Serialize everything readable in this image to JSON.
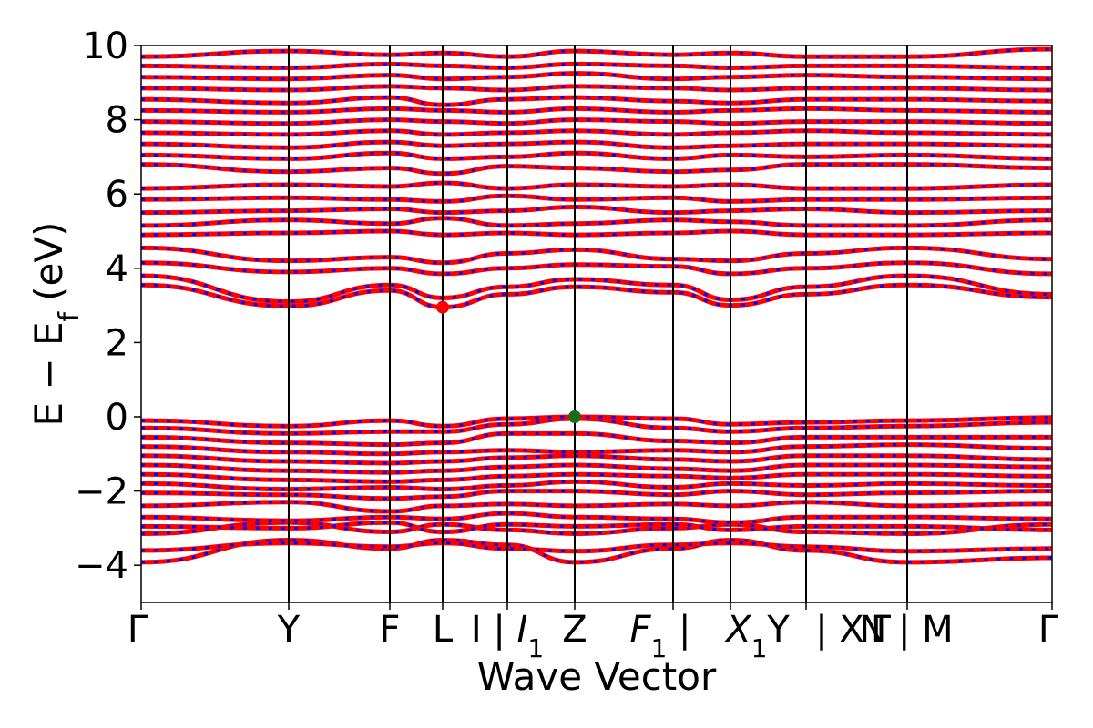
{
  "chart_data": {
    "type": "line",
    "xlabel": "Wave Vector",
    "ylabel": "E − E",
    "ylabel_sub": "f",
    "ylabel_unit": "(eV)",
    "ylim": [
      -5,
      10
    ],
    "yticks": [
      -4,
      -2,
      0,
      2,
      4,
      6,
      8,
      10
    ],
    "grid": false,
    "colors": {
      "band_main": "#ff0000",
      "band_dash": "#0000ff",
      "cbm_marker": "#ff0000",
      "vbm_marker": "#1a6b1a",
      "kpath_lines": "#000000"
    },
    "kpath": [
      {
        "label": "Γ",
        "x": 0.0
      },
      {
        "label": "Y",
        "x": 0.648
      },
      {
        "label": "F",
        "x": 1.092
      },
      {
        "label": "L",
        "x": 1.324
      },
      {
        "label": "I | ",
        "label_italic": "I",
        "label_sub": "1",
        "x": 1.608
      },
      {
        "label": "Z",
        "x": 1.904
      },
      {
        "label": "",
        "label_italic": "F",
        "label_sub": "1",
        "label_suffix": " |",
        "x": 2.336
      },
      {
        "label": "",
        "label_italic_part": "X",
        "label_sub": "1",
        "label_tail": "Y",
        "x": 2.588
      },
      {
        "label": "| X",
        "x": 2.588
      },
      {
        "label": "Γ",
        "x": 2.92
      },
      {
        "label": "N | M",
        "x": 3.364
      },
      {
        "label": "Γ",
        "x": 4.0
      }
    ],
    "tick_texts": [
      "Γ",
      "Y",
      "F",
      "L",
      "I | ",
      "I",
      "1",
      "Z",
      "F",
      "1",
      " |",
      "X",
      "1",
      "Y",
      "| X",
      "Γ",
      "N | M",
      "Γ"
    ],
    "vbm_point": {
      "x": 1.904,
      "y": 0.0
    },
    "cbm_point": {
      "x": 1.324,
      "y": 2.95
    },
    "series": [
      {
        "values": [
          -3.92,
          -3.32,
          -3.55,
          -3.32,
          -3.45,
          -3.92,
          -3.55,
          -3.32,
          -3.6,
          -3.92,
          -3.8,
          -3.92
        ]
      },
      {
        "values": [
          -3.6,
          -3.4,
          -3.5,
          -3.4,
          -3.55,
          -3.62,
          -3.45,
          -3.4,
          -3.5,
          -3.62,
          -3.55,
          -3.62
        ]
      },
      {
        "values": [
          -3.15,
          -2.85,
          -3.1,
          -2.9,
          -3.05,
          -3.15,
          -3.0,
          -2.9,
          -3.1,
          -3.15,
          -2.9,
          -3.15
        ]
      },
      {
        "values": [
          -2.95,
          -3.0,
          -2.85,
          -3.1,
          -2.9,
          -2.95,
          -2.9,
          -3.05,
          -2.95,
          -2.95,
          -3.05,
          -2.95
        ]
      },
      {
        "values": [
          -2.7,
          -2.8,
          -2.7,
          -2.75,
          -2.6,
          -2.7,
          -2.75,
          -2.85,
          -2.7,
          -2.7,
          -2.75,
          -2.7
        ]
      },
      {
        "values": [
          -2.4,
          -2.3,
          -2.55,
          -2.4,
          -2.35,
          -2.4,
          -2.35,
          -2.4,
          -2.3,
          -2.4,
          -2.35,
          -2.4
        ]
      },
      {
        "values": [
          -2.05,
          -2.1,
          -2.2,
          -2.15,
          -2.0,
          -2.0,
          -2.1,
          -2.0,
          -2.1,
          -2.05,
          -2.0,
          -2.05
        ]
      },
      {
        "values": [
          -1.8,
          -1.95,
          -1.9,
          -1.95,
          -1.85,
          -1.75,
          -1.9,
          -1.8,
          -1.85,
          -1.8,
          -1.85,
          -1.8
        ]
      },
      {
        "values": [
          -1.55,
          -1.7,
          -1.75,
          -1.7,
          -1.6,
          -1.55,
          -1.6,
          -1.65,
          -1.55,
          -1.55,
          -1.6,
          -1.55
        ]
      },
      {
        "values": [
          -1.3,
          -1.45,
          -1.5,
          -1.45,
          -1.35,
          -1.3,
          -1.4,
          -1.45,
          -1.3,
          -1.3,
          -1.35,
          -1.3
        ]
      },
      {
        "values": [
          -1.05,
          -1.2,
          -1.25,
          -1.2,
          -1.1,
          -1.05,
          -1.15,
          -1.2,
          -1.05,
          -1.05,
          -1.15,
          -1.05
        ]
      },
      {
        "values": [
          -0.8,
          -0.95,
          -1.0,
          -0.95,
          -0.9,
          -0.95,
          -0.9,
          -0.95,
          -0.8,
          -0.75,
          -0.85,
          -0.8
        ]
      },
      {
        "values": [
          -0.55,
          -0.7,
          -0.75,
          -0.7,
          -0.45,
          -0.45,
          -0.65,
          -0.7,
          -0.55,
          -0.55,
          -0.55,
          -0.55
        ]
      },
      {
        "values": [
          -0.3,
          -0.45,
          -0.4,
          -0.4,
          -0.2,
          -0.05,
          -0.3,
          -0.4,
          -0.3,
          -0.25,
          -0.15,
          -0.3
        ]
      },
      {
        "values": [
          -0.1,
          -0.25,
          -0.1,
          -0.25,
          -0.05,
          0.0,
          -0.05,
          -0.2,
          -0.15,
          -0.1,
          -0.02,
          -0.1
        ]
      },
      {
        "values": [
          3.55,
          2.98,
          3.4,
          2.95,
          3.3,
          3.5,
          3.35,
          3.0,
          3.3,
          3.55,
          3.22,
          3.55
        ]
      },
      {
        "values": [
          3.8,
          3.1,
          3.55,
          3.2,
          3.5,
          3.7,
          3.55,
          3.15,
          3.5,
          3.8,
          3.3,
          3.8
        ]
      },
      {
        "values": [
          4.15,
          3.9,
          4.0,
          3.85,
          4.0,
          4.1,
          4.05,
          3.85,
          4.0,
          4.15,
          3.85,
          4.15
        ]
      },
      {
        "values": [
          4.55,
          4.2,
          4.3,
          4.15,
          4.4,
          4.5,
          4.25,
          4.2,
          4.4,
          4.55,
          4.25,
          4.55
        ]
      },
      {
        "values": [
          4.9,
          4.95,
          5.0,
          4.9,
          4.95,
          4.9,
          4.95,
          5.0,
          4.9,
          4.9,
          4.95,
          4.9
        ]
      },
      {
        "values": [
          5.15,
          5.3,
          5.2,
          5.35,
          5.15,
          5.2,
          5.3,
          5.25,
          5.15,
          5.15,
          5.3,
          5.15
        ]
      },
      {
        "values": [
          5.5,
          5.55,
          5.6,
          5.5,
          5.55,
          5.65,
          5.5,
          5.55,
          5.6,
          5.5,
          5.55,
          5.5
        ]
      },
      {
        "values": [
          5.85,
          5.9,
          5.85,
          5.8,
          5.95,
          5.85,
          5.9,
          5.8,
          5.85,
          5.85,
          5.9,
          5.85
        ]
      },
      {
        "values": [
          6.15,
          6.25,
          6.2,
          6.3,
          6.15,
          6.25,
          6.2,
          6.25,
          6.15,
          6.15,
          6.25,
          6.15
        ]
      },
      {
        "values": [
          6.8,
          6.6,
          6.7,
          6.55,
          6.75,
          6.7,
          6.6,
          6.65,
          6.8,
          6.8,
          6.7,
          6.8
        ]
      },
      {
        "values": [
          7.05,
          6.95,
          7.1,
          6.95,
          7.0,
          7.1,
          6.95,
          7.05,
          7.0,
          7.05,
          6.95,
          7.05
        ]
      },
      {
        "values": [
          7.35,
          7.25,
          7.4,
          7.3,
          7.35,
          7.4,
          7.25,
          7.3,
          7.35,
          7.35,
          7.3,
          7.35
        ]
      },
      {
        "values": [
          7.65,
          7.6,
          7.7,
          7.6,
          7.65,
          7.7,
          7.6,
          7.65,
          7.7,
          7.65,
          7.6,
          7.65
        ]
      },
      {
        "values": [
          7.95,
          7.9,
          8.0,
          7.95,
          7.9,
          8.0,
          7.95,
          7.9,
          7.95,
          7.95,
          7.9,
          7.95
        ]
      },
      {
        "values": [
          8.25,
          8.2,
          8.3,
          8.25,
          8.2,
          8.3,
          8.2,
          8.25,
          8.3,
          8.25,
          8.2,
          8.25
        ]
      },
      {
        "values": [
          8.55,
          8.45,
          8.6,
          8.4,
          8.55,
          8.6,
          8.5,
          8.45,
          8.55,
          8.55,
          8.5,
          8.55
        ]
      },
      {
        "values": [
          8.85,
          8.8,
          8.9,
          8.85,
          8.8,
          8.9,
          8.85,
          8.8,
          8.85,
          8.85,
          8.8,
          8.85
        ]
      },
      {
        "values": [
          9.15,
          9.1,
          9.2,
          9.1,
          9.15,
          9.25,
          9.1,
          9.15,
          9.2,
          9.15,
          9.1,
          9.15
        ]
      },
      {
        "values": [
          9.45,
          9.4,
          9.5,
          9.45,
          9.4,
          9.5,
          9.45,
          9.4,
          9.45,
          9.45,
          9.4,
          9.45
        ]
      },
      {
        "values": [
          9.7,
          9.85,
          9.75,
          9.8,
          9.7,
          9.85,
          9.75,
          9.8,
          9.7,
          9.7,
          9.9,
          9.7
        ]
      }
    ]
  }
}
